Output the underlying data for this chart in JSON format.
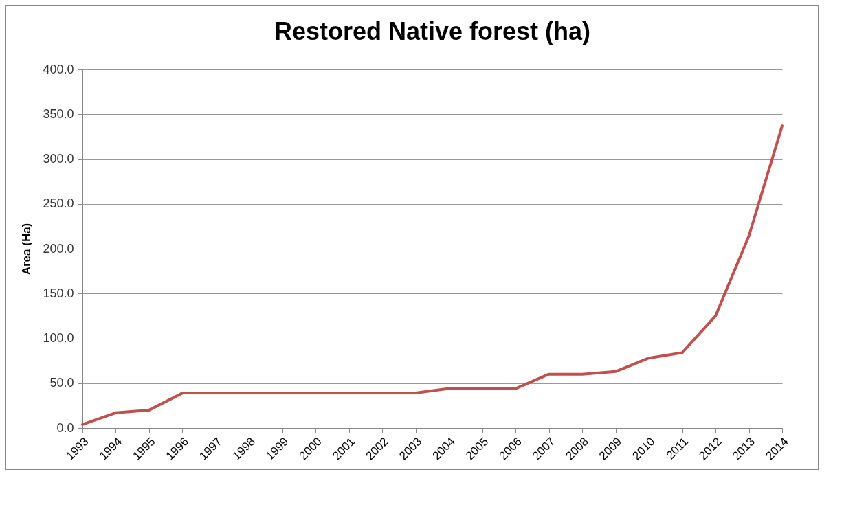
{
  "chart_data": {
    "type": "line",
    "title": "Restored Native forest (ha)",
    "ylabel": "Area (Ha)",
    "categories": [
      "1993",
      "1994",
      "1995",
      "1996",
      "1997",
      "1998",
      "1999",
      "2000",
      "2001",
      "2002",
      "2003",
      "2004",
      "2005",
      "2006",
      "2007",
      "2008",
      "2009",
      "2010",
      "2011",
      "2012",
      "2013",
      "2014"
    ],
    "series": [
      {
        "color": "#c0504d",
        "values": [
          4,
          17,
          20,
          39,
          39,
          39,
          39,
          39,
          39,
          39,
          39,
          44,
          44,
          44,
          60,
          60,
          63,
          78,
          84,
          125,
          214,
          337
        ]
      }
    ],
    "ylim": [
      0,
      400
    ],
    "yticks": [
      {
        "value": 0,
        "label": "0.0"
      },
      {
        "value": 50,
        "label": "50.0"
      },
      {
        "value": 100,
        "label": "100.0"
      },
      {
        "value": 150,
        "label": "150.0"
      },
      {
        "value": 200,
        "label": "200.0"
      },
      {
        "value": 250,
        "label": "250.0"
      },
      {
        "value": 300,
        "label": "300.0"
      },
      {
        "value": 350,
        "label": "350.0"
      },
      {
        "value": 400,
        "label": "400.0"
      }
    ],
    "grid": "y",
    "marker": "none",
    "line_style": "solid"
  }
}
